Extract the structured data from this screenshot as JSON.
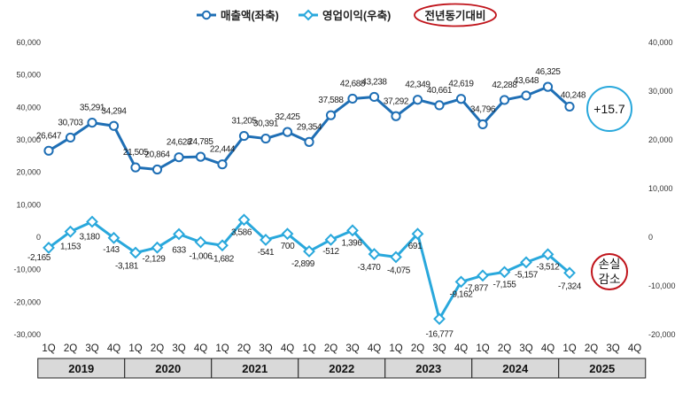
{
  "chart_data": {
    "type": "line",
    "categories": [
      "2019 1Q",
      "2019 2Q",
      "2019 3Q",
      "2019 4Q",
      "2020 1Q",
      "2020 2Q",
      "2020 3Q",
      "2020 4Q",
      "2021 1Q",
      "2021 2Q",
      "2021 3Q",
      "2021 4Q",
      "2022 1Q",
      "2022 2Q",
      "2022 3Q",
      "2022 4Q",
      "2023 1Q",
      "2023 2Q",
      "2023 3Q",
      "2023 4Q",
      "2024 1Q",
      "2024 2Q",
      "2024 3Q",
      "2024 4Q",
      "2025 1Q",
      "2025 2Q",
      "2025 3Q",
      "2025 4Q"
    ],
    "quarter_labels": [
      "1Q",
      "2Q",
      "3Q",
      "4Q",
      "1Q",
      "2Q",
      "3Q",
      "4Q",
      "1Q",
      "2Q",
      "3Q",
      "4Q",
      "1Q",
      "2Q",
      "3Q",
      "4Q",
      "1Q",
      "2Q",
      "3Q",
      "4Q",
      "1Q",
      "2Q",
      "3Q",
      "4Q",
      "1Q",
      "2Q",
      "3Q",
      "4Q"
    ],
    "years": [
      "2019",
      "2020",
      "2021",
      "2022",
      "2023",
      "2024",
      "2025"
    ],
    "series": [
      {
        "name": "매출액(좌축)",
        "axis": "left",
        "color": "#1f6fb5",
        "marker": "circle",
        "values": [
          26647,
          30703,
          35291,
          34294,
          21505,
          20864,
          24628,
          24785,
          22444,
          31205,
          30391,
          32425,
          29354,
          37588,
          42688,
          43238,
          37292,
          42349,
          40661,
          42619,
          34796,
          42288,
          43648,
          46325,
          40248,
          null,
          null,
          null
        ],
        "labels": [
          "26,647",
          "30,703",
          "35,291",
          "34,294",
          "21,505",
          "20,864",
          "24,628",
          "24,785",
          "22,444",
          "31,205",
          "30,391",
          "32,425",
          "29,354",
          "37,588",
          "42,688",
          "43,238",
          "37,292",
          "42,349",
          "40,661",
          "42,619",
          "34,796",
          "42,288",
          "43,648",
          "46,325",
          "40,248",
          "",
          "",
          ""
        ]
      },
      {
        "name": "영업이익(우축)",
        "axis": "right",
        "color": "#29a8dc",
        "marker": "diamond",
        "values": [
          -2165,
          1153,
          3180,
          -143,
          -3181,
          -2129,
          633,
          -1006,
          -1682,
          3586,
          -541,
          700,
          -2899,
          -512,
          1396,
          -3470,
          -4075,
          691,
          -16777,
          -9162,
          -7877,
          -7155,
          -5157,
          -3512,
          -7324,
          null,
          null,
          null
        ],
        "labels": [
          "-2,165",
          "1,153",
          "3,180",
          "-143",
          "-3,181",
          "-2,129",
          "633",
          "-1,006",
          "-1,682",
          "3,586",
          "-541",
          "700",
          "-2,899",
          "-512",
          "1,396",
          "-3,470",
          "-4,075",
          "691",
          "-16,777",
          "-9,162",
          "-7,877",
          "-7,155",
          "-5,157",
          "-3,512",
          "-7,324",
          "",
          "",
          ""
        ]
      }
    ],
    "left_axis": {
      "ylim": [
        -30000,
        60000
      ],
      "ticks": [
        "-30,000",
        "-20,000",
        "-10,000",
        "0",
        "10,000",
        "20,000",
        "30,000",
        "40,000",
        "50,000",
        "60,000"
      ]
    },
    "right_axis": {
      "ylim": [
        -20000,
        40000
      ],
      "ticks": [
        "-20,000",
        "-10,000",
        "0",
        "10,000",
        "20,000",
        "30,000",
        "40,000"
      ]
    },
    "legend": {
      "items": [
        "매출액(좌축)",
        "영업이익(우축)"
      ],
      "badge": "전년동기대비",
      "placement": "top"
    },
    "annotations": [
      {
        "text": "+15.7",
        "target": "매출액(좌축)",
        "color": "#29a8dc"
      },
      {
        "text": "손실\n감소",
        "target": "영업이익(우축)",
        "color": "#c0141b"
      }
    ]
  }
}
